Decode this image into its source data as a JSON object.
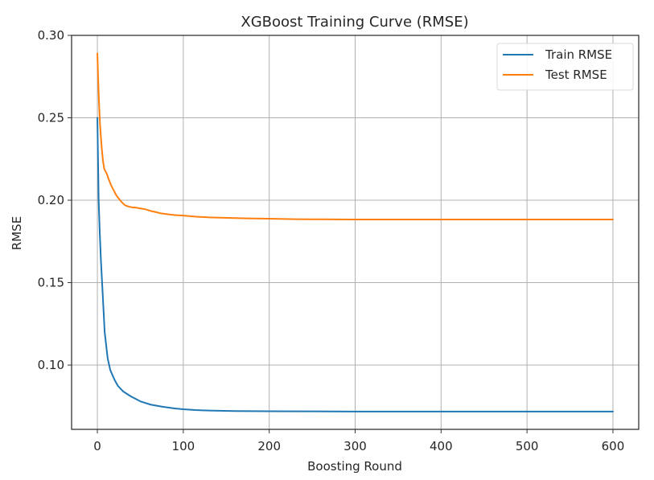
{
  "chart_data": {
    "type": "line",
    "title": "XGBoost Training Curve (RMSE)",
    "xlabel": "Boosting Round",
    "ylabel": "RMSE",
    "xlim": [
      -30,
      630
    ],
    "ylim": [
      0.061,
      0.3
    ],
    "xticks": [
      0,
      100,
      200,
      300,
      400,
      500,
      600
    ],
    "xtick_labels": [
      "0",
      "100",
      "200",
      "300",
      "400",
      "500",
      "600"
    ],
    "yticks": [
      0.1,
      0.15,
      0.2,
      0.25,
      0.3
    ],
    "ytick_labels": [
      "0.10",
      "0.15",
      "0.20",
      "0.25",
      "0.30"
    ],
    "grid": true,
    "legend_position": "top-right",
    "series": [
      {
        "name": "Train RMSE",
        "color": "#1f77b4",
        "x": [
          0,
          1.5,
          2.8,
          4,
          5.5,
          8.5,
          12,
          15,
          20,
          24,
          30,
          39,
          50,
          62,
          75,
          90,
          100,
          114,
          130,
          160,
          200,
          250,
          300,
          400,
          500,
          600
        ],
        "y": [
          0.25,
          0.2,
          0.18,
          0.165,
          0.15,
          0.12,
          0.104,
          0.097,
          0.091,
          0.0873,
          0.084,
          0.081,
          0.078,
          0.076,
          0.0748,
          0.0737,
          0.0732,
          0.0727,
          0.0724,
          0.0721,
          0.072,
          0.0719,
          0.0718,
          0.0718,
          0.0718,
          0.0718
        ]
      },
      {
        "name": "Test RMSE",
        "color": "#ff7f0e",
        "x": [
          0,
          1,
          2,
          3,
          4,
          5,
          6.5,
          8,
          11,
          13,
          16,
          19,
          22,
          25,
          28,
          32,
          36,
          40,
          45,
          50,
          56,
          62,
          68,
          74,
          82,
          90,
          100,
          115,
          130,
          152,
          175,
          200,
          230,
          260,
          300,
          400,
          500,
          600
        ],
        "y": [
          0.289,
          0.272,
          0.258,
          0.247,
          0.239,
          0.232,
          0.224,
          0.219,
          0.216,
          0.213,
          0.209,
          0.206,
          0.203,
          0.201,
          0.199,
          0.197,
          0.1962,
          0.1957,
          0.1955,
          0.195,
          0.1945,
          0.1935,
          0.1928,
          0.192,
          0.1915,
          0.191,
          0.1907,
          0.19,
          0.1896,
          0.1893,
          0.189,
          0.1888,
          0.1885,
          0.1884,
          0.1883,
          0.1883,
          0.1883,
          0.1883
        ]
      }
    ]
  }
}
